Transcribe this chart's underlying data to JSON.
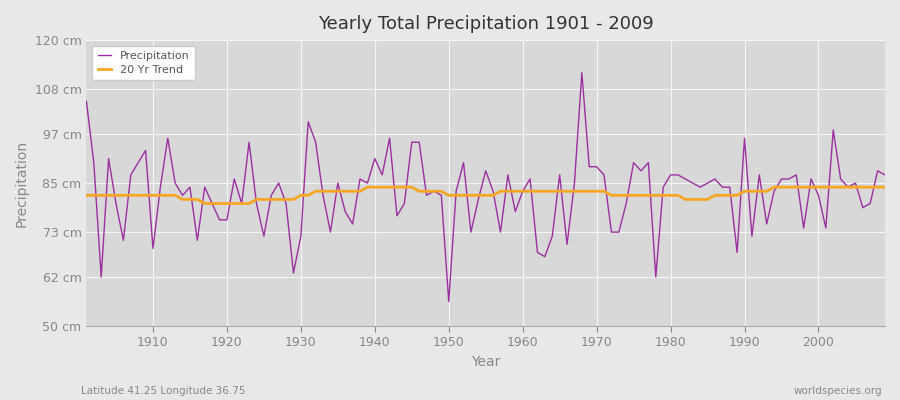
{
  "title": "Yearly Total Precipitation 1901 - 2009",
  "xlabel": "Year",
  "ylabel": "Precipitation",
  "subtitle": "Latitude 41.25 Longitude 36.75",
  "watermark": "worldspecies.org",
  "ylim": [
    50,
    120
  ],
  "yticks": [
    50,
    62,
    73,
    85,
    97,
    108,
    120
  ],
  "ytick_labels": [
    "50 cm",
    "62 cm",
    "73 cm",
    "85 cm",
    "97 cm",
    "108 cm",
    "120 cm"
  ],
  "xlim": [
    1901,
    2009
  ],
  "precip_color": "#9b30a0",
  "trend_color": "#f5a623",
  "bg_color": "#e8e8e8",
  "plot_bg_color": "#d8d8d8",
  "grid_color": "#f5f5f5",
  "years": [
    1901,
    1902,
    1903,
    1904,
    1905,
    1906,
    1907,
    1908,
    1909,
    1910,
    1911,
    1912,
    1913,
    1914,
    1915,
    1916,
    1917,
    1918,
    1919,
    1920,
    1921,
    1922,
    1923,
    1924,
    1925,
    1926,
    1927,
    1928,
    1929,
    1930,
    1931,
    1932,
    1933,
    1934,
    1935,
    1936,
    1937,
    1938,
    1939,
    1940,
    1941,
    1942,
    1943,
    1944,
    1945,
    1946,
    1947,
    1948,
    1949,
    1950,
    1951,
    1952,
    1953,
    1954,
    1955,
    1956,
    1957,
    1958,
    1959,
    1960,
    1961,
    1962,
    1963,
    1964,
    1965,
    1966,
    1967,
    1968,
    1969,
    1970,
    1971,
    1972,
    1973,
    1974,
    1975,
    1976,
    1977,
    1978,
    1979,
    1980,
    1981,
    1982,
    1983,
    1984,
    1985,
    1986,
    1987,
    1988,
    1989,
    1990,
    1991,
    1992,
    1993,
    1994,
    1995,
    1996,
    1997,
    1998,
    1999,
    2000,
    2001,
    2002,
    2003,
    2004,
    2005,
    2006,
    2007,
    2008,
    2009
  ],
  "precipitation": [
    105,
    90,
    62,
    91,
    80,
    71,
    87,
    90,
    93,
    69,
    84,
    96,
    85,
    82,
    84,
    71,
    84,
    80,
    76,
    76,
    86,
    80,
    95,
    80,
    72,
    82,
    85,
    80,
    63,
    72,
    100,
    95,
    82,
    73,
    85,
    78,
    75,
    86,
    85,
    91,
    87,
    96,
    77,
    80,
    95,
    95,
    82,
    83,
    82,
    56,
    83,
    90,
    73,
    81,
    88,
    83,
    73,
    87,
    78,
    83,
    86,
    68,
    67,
    72,
    87,
    70,
    85,
    112,
    89,
    89,
    87,
    73,
    73,
    80,
    90,
    88,
    90,
    62,
    84,
    87,
    87,
    86,
    85,
    84,
    85,
    86,
    84,
    84,
    68,
    96,
    72,
    87,
    75,
    83,
    86,
    86,
    87,
    74,
    86,
    82,
    74,
    98,
    86,
    84,
    85,
    79,
    80,
    88,
    87
  ],
  "trend": [
    82,
    82,
    82,
    82,
    82,
    82,
    82,
    82,
    82,
    82,
    82,
    82,
    82,
    81,
    81,
    81,
    80,
    80,
    80,
    80,
    80,
    80,
    80,
    81,
    81,
    81,
    81,
    81,
    81,
    82,
    82,
    83,
    83,
    83,
    83,
    83,
    83,
    83,
    84,
    84,
    84,
    84,
    84,
    84,
    84,
    83,
    83,
    83,
    83,
    82,
    82,
    82,
    82,
    82,
    82,
    82,
    83,
    83,
    83,
    83,
    83,
    83,
    83,
    83,
    83,
    83,
    83,
    83,
    83,
    83,
    83,
    82,
    82,
    82,
    82,
    82,
    82,
    82,
    82,
    82,
    82,
    81,
    81,
    81,
    81,
    82,
    82,
    82,
    82,
    83,
    83,
    83,
    83,
    84,
    84,
    84,
    84,
    84,
    84,
    84,
    84,
    84,
    84,
    84,
    84,
    84,
    84,
    84,
    84
  ]
}
